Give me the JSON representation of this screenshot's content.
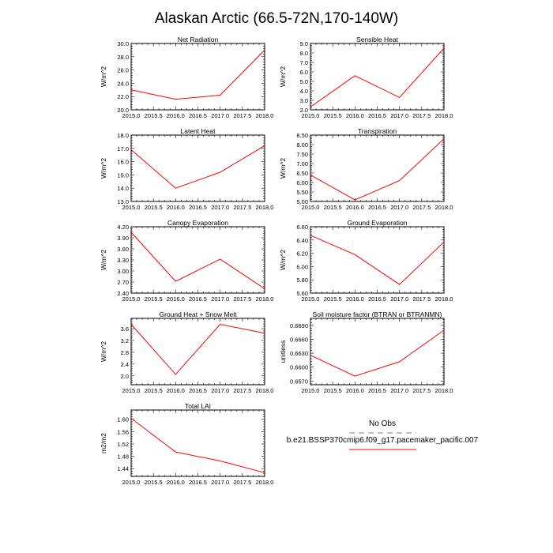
{
  "title": "Alaskan Arctic (66.5-72N,170-140W)",
  "colors": {
    "series": "#ff0000",
    "obs": "#a6a6cf",
    "axis": "#000000"
  },
  "legend": {
    "obs_label": "No Obs",
    "model_label": "b.e21.BSSP370cmip6.f09_g17.pacemaker_pacific.007"
  },
  "chart_data": [
    {
      "type": "line",
      "title": "Net Radiation",
      "ylabel": "W/m^2",
      "x": [
        2015,
        2016,
        2017,
        2018
      ],
      "values": [
        23.0,
        21.6,
        22.2,
        29.0
      ],
      "xlim": [
        2015,
        2018
      ],
      "ylim": [
        20,
        30
      ],
      "yticks": [
        20,
        22,
        24,
        26,
        28,
        30
      ],
      "ydec": 1,
      "xticks": [
        2015,
        2015.5,
        2016,
        2016.5,
        2017,
        2017.5,
        2018
      ],
      "xtick_labels": [
        "2015.0",
        "2015.5",
        "2016.0",
        "2016.5",
        "2017.0",
        "2017.5",
        "2018.0"
      ]
    },
    {
      "type": "line",
      "title": "Sensible Heat",
      "ylabel": "W/m^2",
      "x": [
        2015,
        2016,
        2017,
        2018
      ],
      "values": [
        2.3,
        5.6,
        3.3,
        8.5
      ],
      "xlim": [
        2015,
        2018
      ],
      "ylim": [
        2,
        9
      ],
      "yticks": [
        2,
        3,
        4,
        5,
        6,
        7,
        8,
        9
      ],
      "ydec": 1,
      "xticks": [
        2015,
        2015.5,
        2016,
        2016.5,
        2017,
        2017.5,
        2018
      ],
      "xtick_labels": [
        "2015.0",
        "2015.5",
        "2016.0",
        "2016.5",
        "2017.0",
        "2017.5",
        "2018.0"
      ]
    },
    {
      "type": "line",
      "title": "Latent Heat",
      "ylabel": "W/m^2",
      "x": [
        2015,
        2016,
        2017,
        2018
      ],
      "values": [
        16.9,
        14.0,
        15.2,
        17.2
      ],
      "xlim": [
        2015,
        2018
      ],
      "ylim": [
        13,
        18
      ],
      "yticks": [
        13,
        14,
        15,
        16,
        17,
        18
      ],
      "ydec": 1,
      "xticks": [
        2015,
        2015.5,
        2016,
        2016.5,
        2017,
        2017.5,
        2018
      ],
      "xtick_labels": [
        "2015.0",
        "2015.5",
        "2016.0",
        "2016.5",
        "2017.0",
        "2017.5",
        "2018.0"
      ]
    },
    {
      "type": "line",
      "title": "Transpiration",
      "ylabel": "W/m^2",
      "x": [
        2015,
        2016,
        2017,
        2018
      ],
      "values": [
        6.4,
        5.08,
        6.1,
        8.3
      ],
      "xlim": [
        2015,
        2018
      ],
      "ylim": [
        5,
        8.5
      ],
      "yticks": [
        5,
        5.5,
        6,
        6.5,
        7,
        7.5,
        8,
        8.5
      ],
      "ydec": 2,
      "xticks": [
        2015,
        2015.5,
        2016,
        2016.5,
        2017,
        2017.5,
        2018
      ],
      "xtick_labels": [
        "2015.0",
        "2015.5",
        "2016.0",
        "2016.5",
        "2017.0",
        "2017.5",
        "2018.0"
      ]
    },
    {
      "type": "line",
      "title": "Canopy Evaporation",
      "ylabel": "W/m^2",
      "x": [
        2015,
        2016,
        2017,
        2018
      ],
      "values": [
        4.05,
        2.72,
        3.32,
        2.52
      ],
      "xlim": [
        2015,
        2018
      ],
      "ylim": [
        2.4,
        4.2
      ],
      "yticks": [
        2.4,
        2.7,
        3.0,
        3.3,
        3.6,
        3.9,
        4.2
      ],
      "ydec": 2,
      "xticks": [
        2015,
        2015.5,
        2016,
        2016.5,
        2017,
        2017.5,
        2018
      ],
      "xtick_labels": [
        "2015.0",
        "2015.5",
        "2016.0",
        "2016.5",
        "2017.0",
        "2017.5",
        "2018.0"
      ]
    },
    {
      "type": "line",
      "title": "Ground Evaporation",
      "ylabel": "W/m^2",
      "x": [
        2015,
        2016,
        2017,
        2018
      ],
      "values": [
        6.47,
        6.18,
        5.73,
        6.37
      ],
      "xlim": [
        2015,
        2018
      ],
      "ylim": [
        5.6,
        6.6
      ],
      "yticks": [
        5.6,
        5.8,
        6.0,
        6.2,
        6.4,
        6.6
      ],
      "ydec": 2,
      "xticks": [
        2015,
        2015.5,
        2016,
        2016.5,
        2017,
        2017.5,
        2018
      ],
      "xtick_labels": [
        "2015.0",
        "2015.5",
        "2016.0",
        "2016.5",
        "2017.0",
        "2017.5",
        "2018.0"
      ]
    },
    {
      "type": "line",
      "title": "Ground Heat + Snow Melt",
      "ylabel": "W/m^2",
      "x": [
        2015,
        2016,
        2017,
        2018
      ],
      "values": [
        3.75,
        2.05,
        3.75,
        3.45
      ],
      "xlim": [
        2015,
        2018
      ],
      "ylim": [
        1.7,
        3.95
      ],
      "yticks": [
        2.0,
        2.4,
        2.8,
        3.2,
        3.6
      ],
      "ydec": 1,
      "xticks": [
        2015,
        2015.5,
        2016,
        2016.5,
        2017,
        2017.5,
        2018
      ],
      "xtick_labels": [
        "2015.0",
        "2015.5",
        "2016.0",
        "2016.5",
        "2017.0",
        "2017.5",
        "2018.0"
      ]
    },
    {
      "type": "line",
      "title": "Soil moisture factor (BTRAN or BTRANMN)",
      "ylabel": "unitless",
      "x": [
        2015,
        2016,
        2017,
        2018
      ],
      "values": [
        0.66255,
        0.65805,
        0.66115,
        0.66795
      ],
      "xlim": [
        2015,
        2018
      ],
      "ylim": [
        0.6562,
        0.6705
      ],
      "yticks": [
        0.657,
        0.66,
        0.663,
        0.666,
        0.669
      ],
      "ydec": 4,
      "xticks": [
        2015,
        2015.5,
        2016,
        2016.5,
        2017,
        2017.5,
        2018
      ],
      "xtick_labels": [
        "2015.0",
        "2015.5",
        "2016.0",
        "2016.5",
        "2017.0",
        "2017.5",
        "2018.0"
      ]
    },
    {
      "type": "line",
      "title": "Total LAI",
      "ylabel": "m2/m2",
      "x": [
        2015,
        2016,
        2017,
        2018
      ],
      "values": [
        1.603,
        1.494,
        1.465,
        1.427
      ],
      "xlim": [
        2015,
        2018
      ],
      "ylim": [
        1.415,
        1.63
      ],
      "yticks": [
        1.44,
        1.48,
        1.52,
        1.56,
        1.6
      ],
      "ydec": 2,
      "xticks": [
        2015,
        2015.5,
        2016,
        2016.5,
        2017,
        2017.5,
        2018
      ],
      "xtick_labels": [
        "2015.0",
        "2015.5",
        "2016.0",
        "2016.5",
        "2017.0",
        "2017.5",
        "2018.0"
      ]
    }
  ]
}
